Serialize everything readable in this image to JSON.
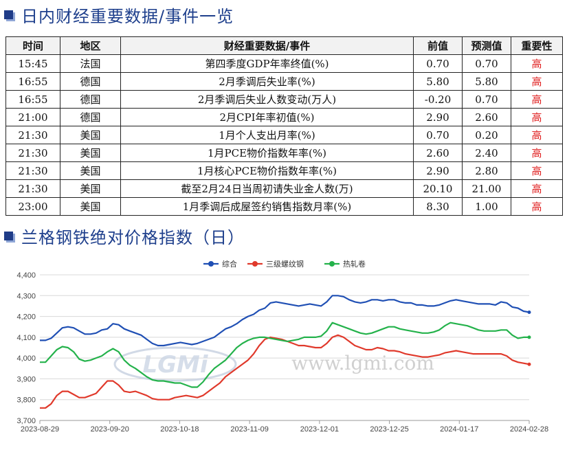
{
  "section1": {
    "title": "日内财经重要数据/事件一览"
  },
  "table": {
    "headers": [
      "时间",
      "地区",
      "财经重要数据/事件",
      "前值",
      "预测值",
      "重要性"
    ],
    "rows": [
      [
        "15:45",
        "法国",
        "第四季度GDP年率终值(%)",
        "0.70",
        "0.70",
        "高"
      ],
      [
        "16:55",
        "德国",
        "2月季调后失业率(%)",
        "5.80",
        "5.80",
        "高"
      ],
      [
        "16:55",
        "德国",
        "2月季调后失业人数变动(万人)",
        "-0.20",
        "0.70",
        "高"
      ],
      [
        "21:00",
        "德国",
        "2月CPI年率初值(%)",
        "2.90",
        "2.60",
        "高"
      ],
      [
        "21:30",
        "美国",
        "1月个人支出月率(%)",
        "0.70",
        "0.20",
        "高"
      ],
      [
        "21:30",
        "美国",
        "1月PCE物价指数年率(%)",
        "2.60",
        "2.40",
        "高"
      ],
      [
        "21:30",
        "美国",
        "1月核心PCE物价指数年率(%)",
        "2.90",
        "2.80",
        "高"
      ],
      [
        "21:30",
        "美国",
        "截至2月24日当周初请失业金人数(万)",
        "20.10",
        "21.00",
        "高"
      ],
      [
        "23:00",
        "美国",
        "1月季调后成屋签约销售指数月率(%)",
        "8.30",
        "1.00",
        "高"
      ]
    ]
  },
  "section2": {
    "title": "兰格钢铁绝对价格指数（日）"
  },
  "watermark": {
    "logo": "LGMi",
    "url": "www.lgmi.com"
  },
  "chart_data": {
    "type": "line",
    "legend_position": "top-center",
    "grid": true,
    "ylim": [
      3700,
      4400
    ],
    "yticks": [
      "3,700",
      "3,800",
      "3,900",
      "4,000",
      "4,100",
      "4,200",
      "4,300",
      "4,400"
    ],
    "x_tick_labels": [
      "2023-08-29",
      "2023-09-20",
      "2023-10-18",
      "2023-11-09",
      "2023-12-01",
      "2023-12-25",
      "2024-01-17",
      "2024-02-28"
    ],
    "series": [
      {
        "name": "综合",
        "color": "#1f4fb4",
        "values": [
          4085,
          4085,
          4095,
          4120,
          4145,
          4150,
          4145,
          4130,
          4115,
          4115,
          4120,
          4135,
          4140,
          4165,
          4160,
          4140,
          4130,
          4120,
          4110,
          4090,
          4070,
          4060,
          4060,
          4065,
          4070,
          4075,
          4070,
          4065,
          4070,
          4080,
          4090,
          4100,
          4120,
          4140,
          4150,
          4165,
          4185,
          4200,
          4210,
          4230,
          4240,
          4265,
          4270,
          4265,
          4260,
          4255,
          4250,
          4255,
          4260,
          4255,
          4250,
          4270,
          4300,
          4300,
          4295,
          4280,
          4270,
          4265,
          4270,
          4280,
          4280,
          4275,
          4280,
          4280,
          4270,
          4265,
          4265,
          4255,
          4255,
          4250,
          4250,
          4255,
          4265,
          4275,
          4280,
          4275,
          4270,
          4265,
          4260,
          4260,
          4260,
          4255,
          4270,
          4265,
          4245,
          4240,
          4225,
          4220
        ]
      },
      {
        "name": "三级螺纹钢",
        "color": "#e0392b",
        "values": [
          3760,
          3760,
          3780,
          3820,
          3840,
          3840,
          3825,
          3810,
          3810,
          3820,
          3830,
          3860,
          3890,
          3890,
          3870,
          3840,
          3835,
          3840,
          3830,
          3820,
          3805,
          3800,
          3800,
          3800,
          3810,
          3815,
          3820,
          3815,
          3810,
          3820,
          3840,
          3860,
          3880,
          3910,
          3930,
          3950,
          3970,
          3990,
          4020,
          4060,
          4090,
          4100,
          4095,
          4090,
          4080,
          4070,
          4060,
          4060,
          4055,
          4050,
          4050,
          4070,
          4100,
          4110,
          4100,
          4080,
          4060,
          4050,
          4040,
          4040,
          4050,
          4045,
          4035,
          4035,
          4030,
          4020,
          4015,
          4010,
          4005,
          4005,
          4010,
          4015,
          4025,
          4030,
          4035,
          4030,
          4025,
          4020,
          4020,
          4020,
          4020,
          4020,
          4020,
          4010,
          3990,
          3980,
          3975,
          3970
        ]
      },
      {
        "name": "热轧卷",
        "color": "#24b24b",
        "values": [
          3980,
          3980,
          4010,
          4040,
          4055,
          4050,
          4030,
          3995,
          3985,
          3990,
          4000,
          4010,
          4030,
          4045,
          4030,
          3990,
          3965,
          3950,
          3930,
          3910,
          3895,
          3890,
          3890,
          3885,
          3880,
          3880,
          3870,
          3860,
          3860,
          3885,
          3920,
          3950,
          3970,
          3990,
          4020,
          4050,
          4070,
          4085,
          4095,
          4100,
          4100,
          4095,
          4090,
          4085,
          4080,
          4085,
          4090,
          4100,
          4100,
          4100,
          4105,
          4130,
          4170,
          4160,
          4150,
          4140,
          4130,
          4120,
          4115,
          4120,
          4130,
          4140,
          4150,
          4150,
          4140,
          4135,
          4130,
          4125,
          4120,
          4120,
          4125,
          4135,
          4155,
          4170,
          4165,
          4160,
          4155,
          4145,
          4135,
          4130,
          4130,
          4130,
          4135,
          4135,
          4110,
          4095,
          4100,
          4100
        ]
      }
    ]
  }
}
